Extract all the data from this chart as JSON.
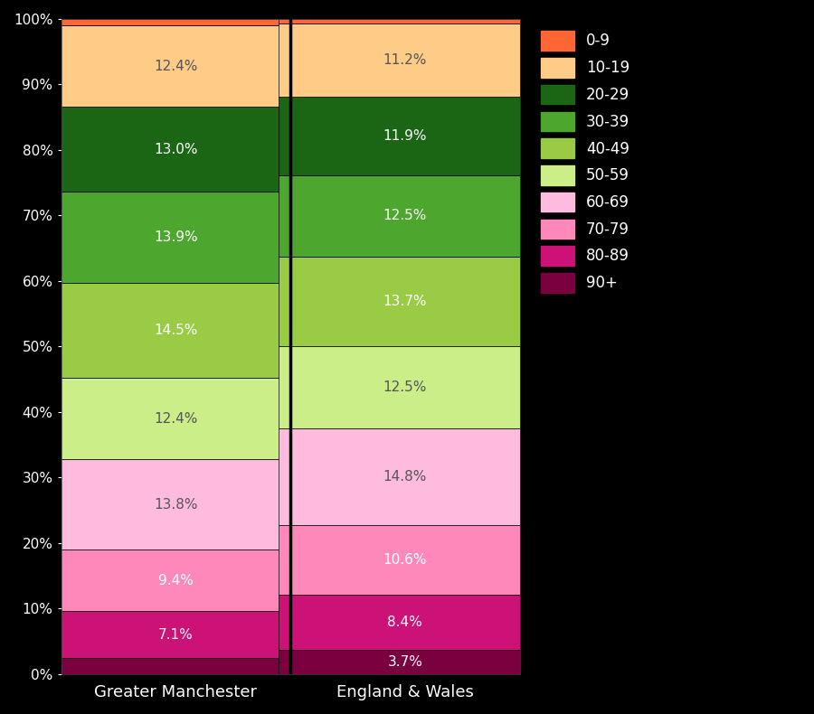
{
  "categories": [
    "Greater Manchester",
    "England & Wales"
  ],
  "age_groups_bottom_to_top": [
    "90+",
    "80-89",
    "70-79",
    "60-69",
    "50-59",
    "40-49",
    "30-39",
    "20-29",
    "10-19",
    "0-9"
  ],
  "colors_bottom_to_top": [
    "#7a0040",
    "#cc1177",
    "#ff88bb",
    "#ffbbdd",
    "#ccee88",
    "#99cc44",
    "#4da62e",
    "#1a6614",
    "#ffcc88",
    "#ff6633"
  ],
  "values": {
    "Greater Manchester": [
      2.5,
      7.1,
      9.4,
      13.8,
      12.4,
      14.5,
      13.9,
      13.0,
      12.4,
      1.0
    ],
    "England & Wales": [
      3.7,
      8.4,
      10.6,
      14.8,
      12.5,
      13.7,
      12.5,
      11.9,
      11.2,
      0.7
    ]
  },
  "labels": {
    "Greater Manchester": [
      "",
      "7.1%",
      "9.4%",
      "13.8%",
      "12.4%",
      "14.5%",
      "13.9%",
      "13.0%",
      "12.4%",
      ""
    ],
    "England & Wales": [
      "3.7%",
      "8.4%",
      "10.6%",
      "14.8%",
      "12.5%",
      "13.7%",
      "12.5%",
      "11.9%",
      "11.2%",
      ""
    ]
  },
  "text_colors_bottom_to_top": {
    "Greater Manchester": [
      "white",
      "white",
      "white",
      "#555555",
      "#555555",
      "white",
      "white",
      "white",
      "#555555",
      "white"
    ],
    "England & Wales": [
      "white",
      "white",
      "white",
      "#555555",
      "#555555",
      "white",
      "white",
      "white",
      "#555555",
      "white"
    ]
  },
  "background_color": "#000000",
  "bar_width": 0.55,
  "x_positions": [
    0.25,
    0.75
  ],
  "x_lim": [
    0.0,
    1.0
  ],
  "y_lim": [
    0,
    100
  ],
  "legend_age_groups": [
    "0-9",
    "10-19",
    "20-29",
    "30-39",
    "40-49",
    "50-59",
    "60-69",
    "70-79",
    "80-89",
    "90+"
  ],
  "legend_colors": [
    "#ff6633",
    "#ffcc88",
    "#1a6614",
    "#4da62e",
    "#99cc44",
    "#ccee88",
    "#ffbbdd",
    "#ff88bb",
    "#cc1177",
    "#7a0040"
  ]
}
